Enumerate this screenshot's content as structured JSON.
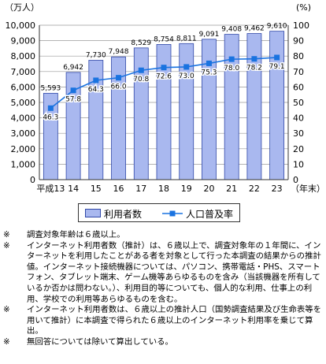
{
  "chart_data": {
    "type": "bar+line",
    "left_unit": "（万人）",
    "right_unit": "(%)",
    "categories": [
      "平成13",
      "14",
      "15",
      "16",
      "17",
      "18",
      "19",
      "20",
      "21",
      "22",
      "23"
    ],
    "x_suffix": "（年末）",
    "series": [
      {
        "name": "利用者数",
        "type": "bar",
        "axis": "left",
        "values": [
          5593,
          6942,
          7730,
          7948,
          8529,
          8754,
          8811,
          9091,
          9408,
          9462,
          9610
        ],
        "labels": [
          "5,593",
          "6,942",
          "7,730",
          "7,948",
          "8,529",
          "8,754",
          "8,811",
          "9,091",
          "9,408",
          "9,462",
          "9,610"
        ]
      },
      {
        "name": "人口普及率",
        "type": "line",
        "axis": "right",
        "values": [
          46.3,
          57.8,
          64.3,
          66.0,
          70.8,
          72.6,
          73.0,
          75.3,
          78.0,
          78.2,
          79.1
        ],
        "labels": [
          "46.3",
          "57.8",
          "64.3",
          "66.0",
          "70.8",
          "72.6",
          "73.0",
          "75.3",
          "78.0",
          "78.2",
          "79.1"
        ]
      }
    ],
    "y_left": {
      "min": 0,
      "max": 10000,
      "ticks": [
        "0",
        "1,000",
        "2,000",
        "3,000",
        "4,000",
        "5,000",
        "6,000",
        "7,000",
        "8,000",
        "9,000",
        "10,000"
      ]
    },
    "y_right": {
      "min": 0,
      "max": 100,
      "ticks": [
        "0",
        "10",
        "20",
        "30",
        "40",
        "50",
        "60",
        "70",
        "80",
        "90",
        "100"
      ]
    },
    "grid": true,
    "legend_position": "bottom",
    "colors": {
      "bar_fill": "#a9b8ef",
      "bar_stroke": "#3048a8",
      "line": "#1a73e0",
      "grid": "#9a9a9a"
    }
  },
  "legend": {
    "bar_label": "利用者数",
    "line_label": "人口普及率"
  },
  "notes": [
    {
      "mark": "※",
      "text": "調査対象年齢は６歳以上。"
    },
    {
      "mark": "※",
      "text": "インターネット利用者数（推計）は、６歳以上で、調査対象年の１年間に、インターネットを利用したことがある者を対象として行った本調査の結果からの推計値。インターネット接続機器については、パソコン、携帯電話・PHS、スマートフォン、タブレット端末、ゲーム機等あらゆるものを含み（当該機器を所有しているか否かは問わない。）、利用目的等についても、個人的な利用、仕事上の利用、学校での利用等あらゆるものを含む。"
    },
    {
      "mark": "※",
      "text": "インターネット利用者数は、６歳以上の推計人口（国勢調査結果及び生命表等を用いて推計）に本調査で得られた６歳以上のインターネット利用率を乗じて算出。"
    },
    {
      "mark": "※",
      "text": "無回答については除いて算出している。"
    }
  ]
}
